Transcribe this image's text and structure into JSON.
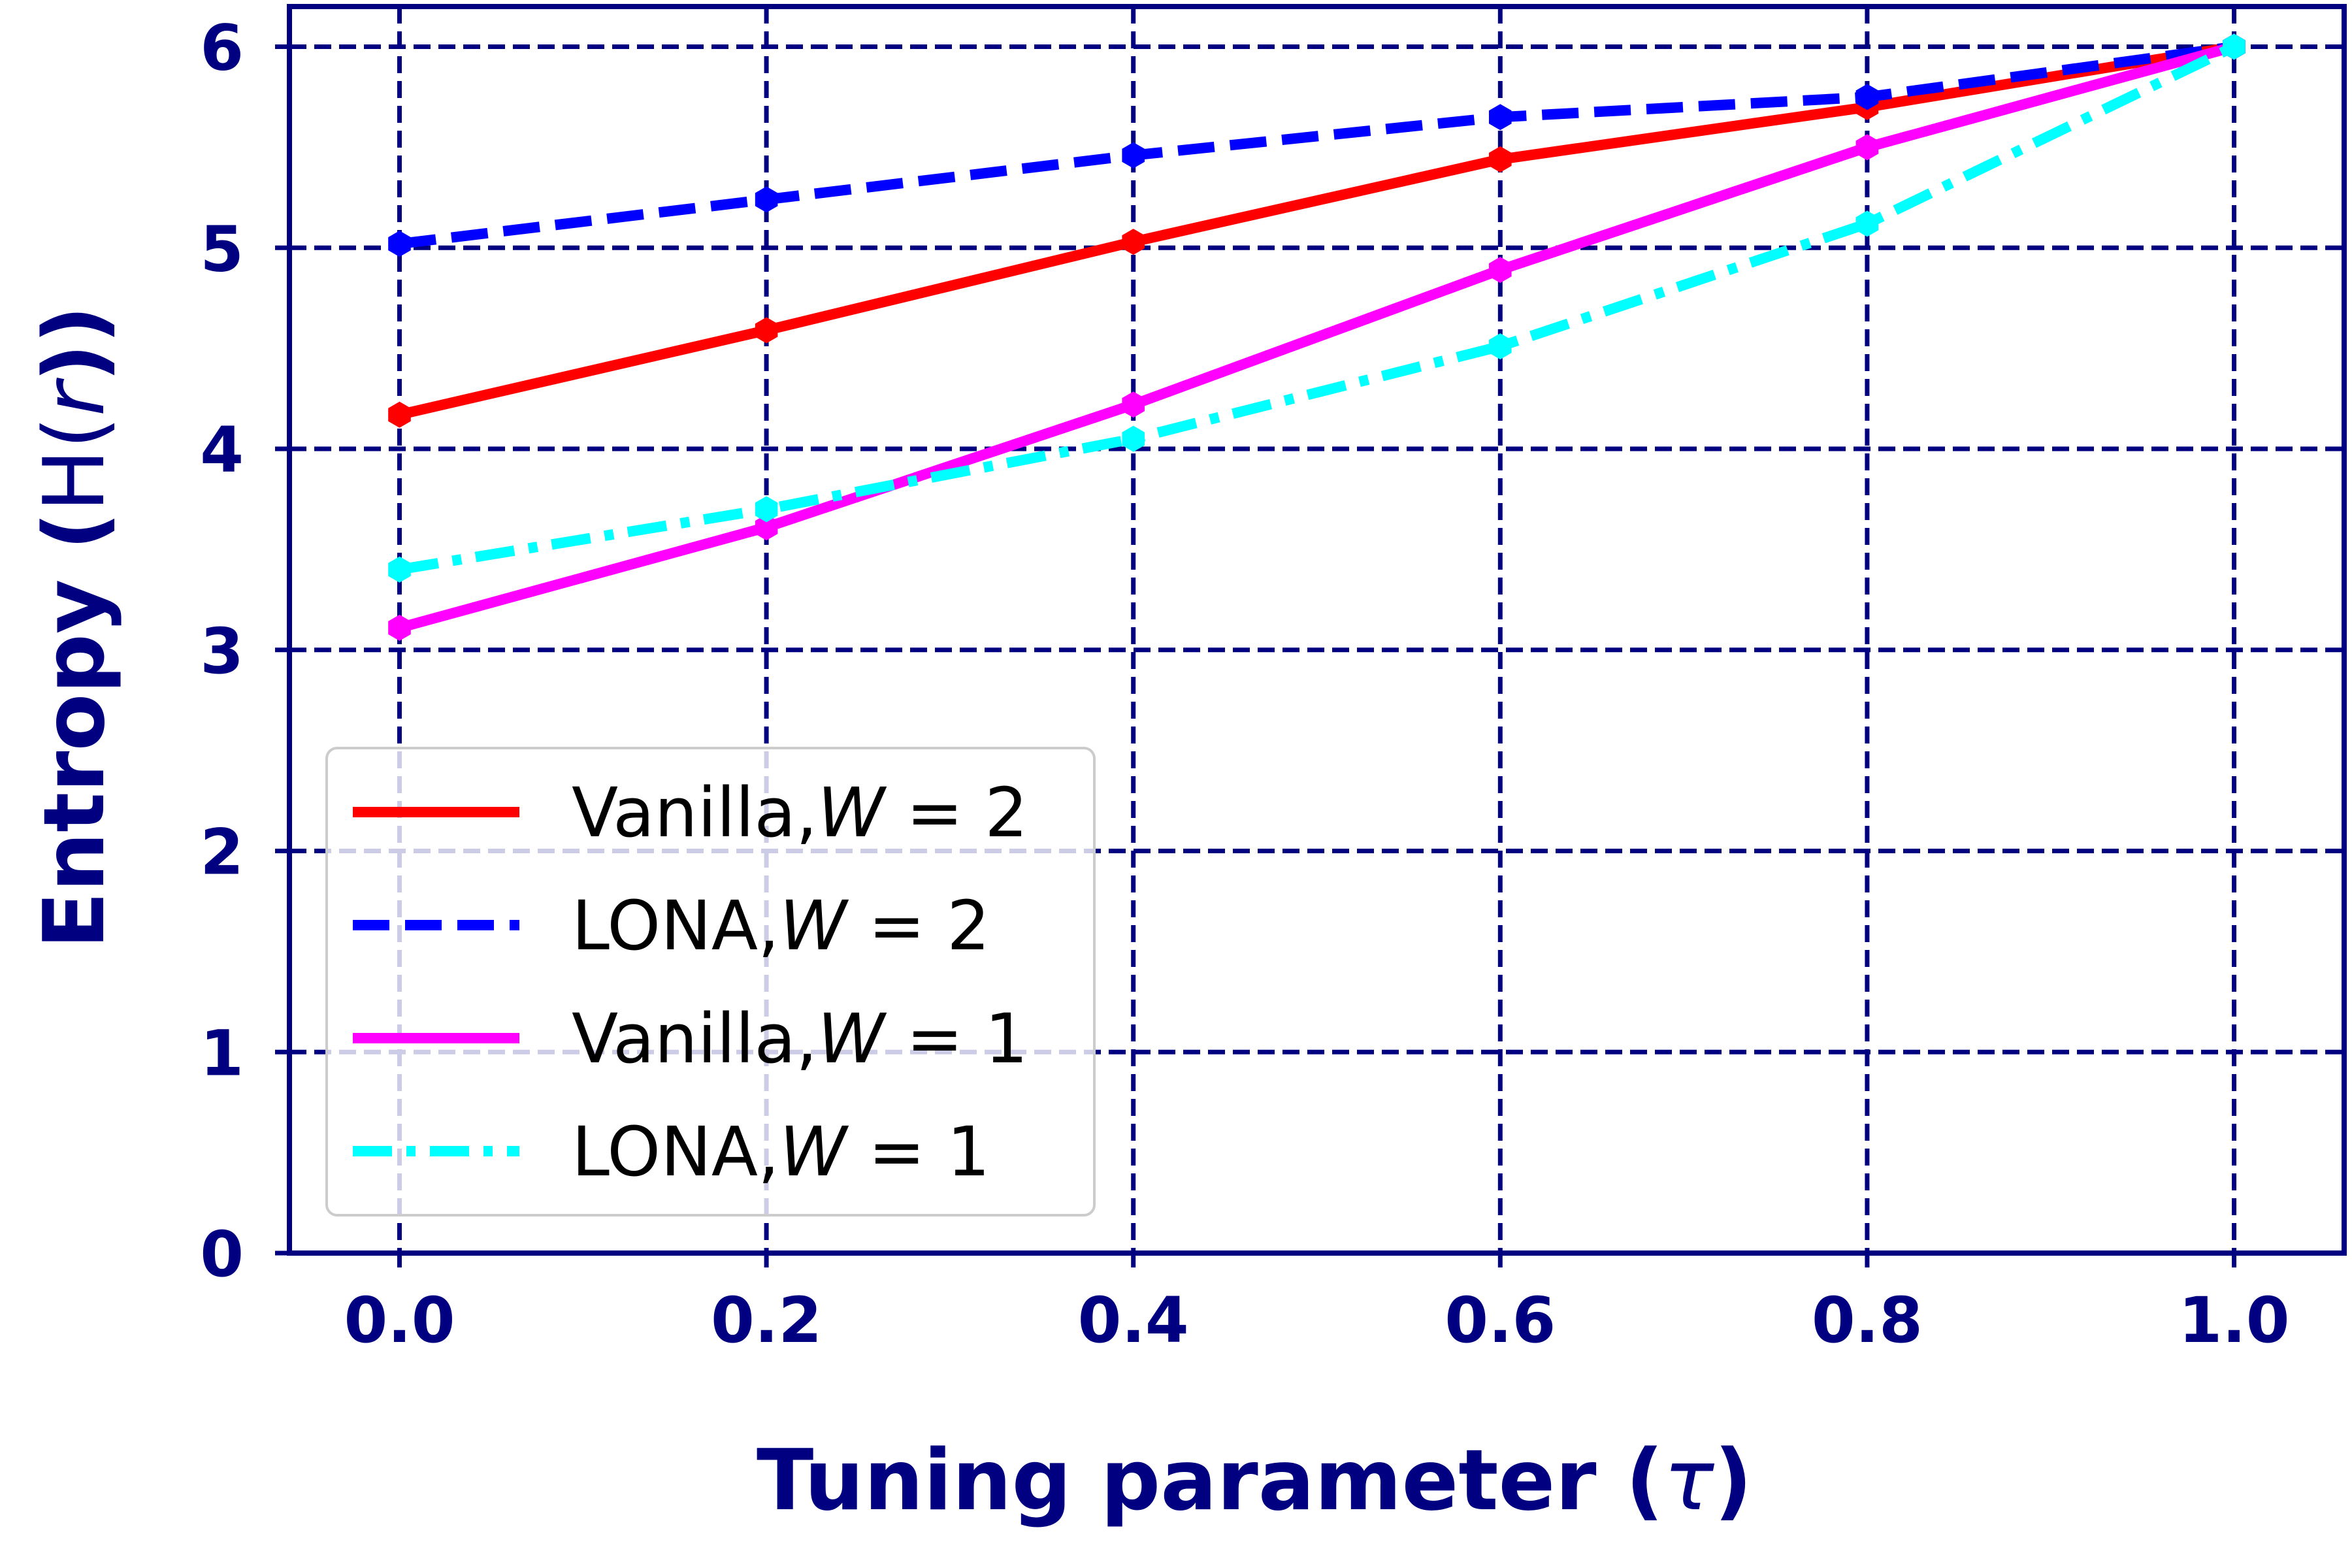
{
  "chart_data": {
    "type": "line",
    "xlabel": {
      "text": "Tuning parameter (",
      "symbol": "τ",
      "close": ")"
    },
    "ylabel": {
      "text": "Entropy (",
      "func": "H(",
      "var": "r",
      "close": "))"
    },
    "xlim": [
      -0.06,
      1.06
    ],
    "ylim": [
      0,
      6.2
    ],
    "xticks": [
      0.0,
      0.2,
      0.4,
      0.6,
      0.8,
      1.0
    ],
    "xtick_labels": [
      "0.0",
      "0.2",
      "0.4",
      "0.6",
      "0.8",
      "1.0"
    ],
    "yticks": [
      0,
      1,
      2,
      3,
      4,
      5,
      6
    ],
    "ytick_labels": [
      "0",
      "1",
      "2",
      "3",
      "4",
      "5",
      "6"
    ],
    "grid": true,
    "legend_position": "lower-left",
    "x": [
      0.0,
      0.2,
      0.4,
      0.6,
      0.8,
      1.0
    ],
    "series": [
      {
        "name": "Vanilla,W = 2",
        "label_text": "Vanilla,",
        "label_var": "W",
        "label_eq": " = 2",
        "values": [
          4.17,
          4.59,
          5.03,
          5.44,
          5.7,
          6.0
        ],
        "color": "#ff0000",
        "style": "solid"
      },
      {
        "name": "LONA,W = 2",
        "label_text": "LONA,",
        "label_var": "W",
        "label_eq": " = 2",
        "values": [
          5.02,
          5.24,
          5.46,
          5.65,
          5.75,
          6.0
        ],
        "color": "#0000ff",
        "style": "dashed"
      },
      {
        "name": "Vanilla,W = 1",
        "label_text": "Vanilla,",
        "label_var": "W",
        "label_eq": " = 1",
        "values": [
          3.11,
          3.61,
          4.22,
          4.89,
          5.5,
          6.0
        ],
        "color": "#ff00ff",
        "style": "solid"
      },
      {
        "name": "LONA,W = 1",
        "label_text": "LONA,",
        "label_var": "W",
        "label_eq": " = 1",
        "values": [
          3.4,
          3.7,
          4.05,
          4.51,
          5.12,
          6.0
        ],
        "color": "#00ffff",
        "style": "dashdot"
      }
    ],
    "colors": {
      "axis": "#000080",
      "grid": "#000080",
      "legend_border": "#cccccc"
    }
  }
}
